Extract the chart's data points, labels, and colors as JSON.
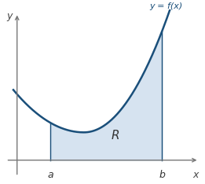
{
  "curve_color": "#1a4f7a",
  "shade_color": "#c5d8ea",
  "shade_alpha": 0.7,
  "label_text": "y = f(x)",
  "label_color": "#1a4f7a",
  "R_label": "R",
  "a_label": "a",
  "b_label": "b",
  "x_label": "x",
  "y_label": "y",
  "axis_color": "#777777",
  "background": "#ffffff",
  "figsize": [
    2.61,
    2.34
  ],
  "dpi": 100
}
